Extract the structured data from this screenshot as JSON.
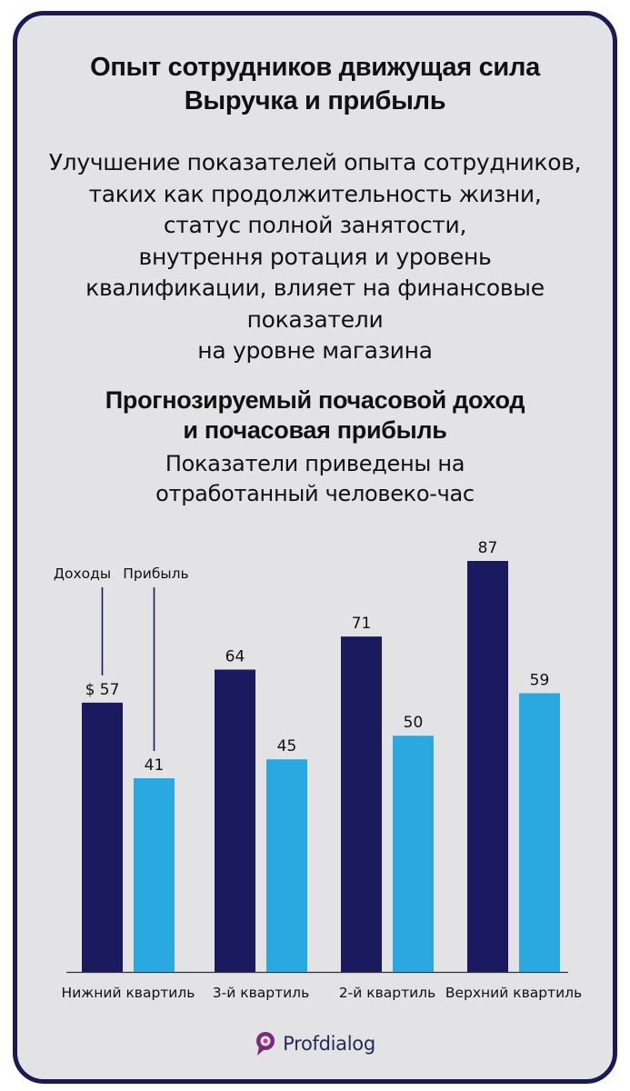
{
  "heading": {
    "lines": [
      "Опыт сотрудников движущая сила",
      "Выручка и прибыль"
    ]
  },
  "intro": {
    "lines": [
      "Улучшение показателей опыта сотрудников,",
      "таких как продолжительность жизни,",
      "статус полной занятости,",
      "внутрення ротация и уровень",
      "квалификации, влияет на финансовые",
      "показатели",
      "на уровне магазина"
    ]
  },
  "brand": {
    "name": "Profdialog",
    "logo_icon": "profdialog-logo-icon"
  },
  "colors": {
    "revenue": "#1c1a5e",
    "profit": "#2aa9e0",
    "frame": "#1c1a55",
    "panel": "#e3e3e6"
  },
  "chart_data": {
    "type": "bar",
    "title_lines": [
      "Прогнозируемый почасовой доход",
      "и почасовая прибыль"
    ],
    "subtitle_lines": [
      "Показатели приведены на",
      "отработанный человеко-час"
    ],
    "categories": [
      "Нижний квартиль",
      "3-й квартиль",
      "2-й квартиль",
      "Верхний квартиль"
    ],
    "series": [
      {
        "name": "Доходы",
        "values": [
          57,
          64,
          71,
          87
        ],
        "labels": [
          "$ 57",
          "64",
          "71",
          "87"
        ]
      },
      {
        "name": "Прибыль",
        "values": [
          41,
          45,
          50,
          59
        ],
        "labels": [
          "41",
          "45",
          "50",
          "59"
        ]
      }
    ],
    "ylim": [
      0,
      87
    ],
    "grid": false,
    "legend": "callout labels above first group"
  }
}
